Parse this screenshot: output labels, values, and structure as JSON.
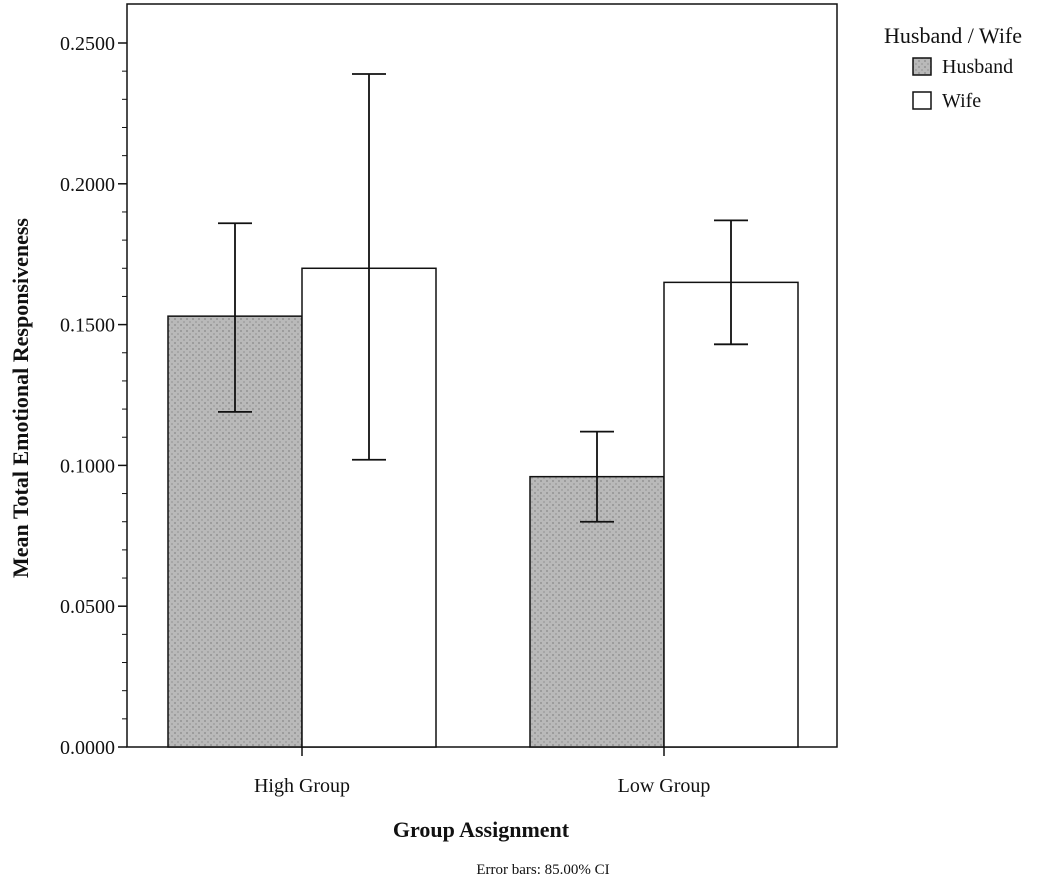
{
  "chart_data": {
    "type": "bar",
    "xlabel": "Group Assignment",
    "ylabel": "Mean Total Emotional Responsiveness",
    "categories": [
      "High Group",
      "Low Group"
    ],
    "ylim": [
      0,
      0.25
    ],
    "yticks": [
      "0.0000",
      "0.0500",
      "0.1000",
      "0.1500",
      "0.2000",
      "0.2500"
    ],
    "legend_title": "Husband / Wife",
    "legend_position": "top-right, outside plot",
    "grid": false,
    "series": [
      {
        "name": "Husband",
        "color": "#b5b5b5",
        "values": [
          0.153,
          0.096
        ],
        "ci_low": [
          0.119,
          0.08
        ],
        "ci_high": [
          0.186,
          0.112
        ]
      },
      {
        "name": "Wife",
        "color": "#ffffff",
        "values": [
          0.17,
          0.165
        ],
        "ci_low": [
          0.102,
          0.143
        ],
        "ci_high": [
          0.239,
          0.187
        ]
      }
    ],
    "note": "Error bars: 85.00% CI"
  }
}
